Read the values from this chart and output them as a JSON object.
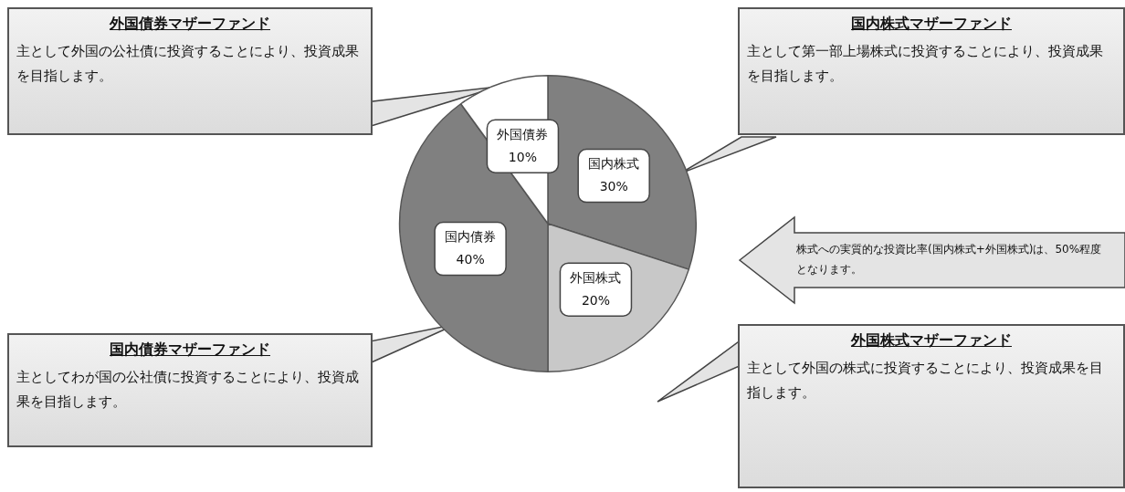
{
  "chart_data": {
    "type": "pie",
    "categories": [
      "国内株式",
      "外国株式",
      "国内債券",
      "外国債券"
    ],
    "values": [
      30,
      20,
      40,
      10
    ],
    "value_labels": [
      "30%",
      "20%",
      "40%",
      "10%"
    ],
    "colors": [
      "#808080",
      "#c8c8c8",
      "#808080",
      "#ffffff"
    ],
    "legend": false,
    "annotations": [
      "外国債券マザーファンド",
      "主として外国の公社債に投資することにより、投資成果を目指します。",
      "国内株式マザーファンド",
      "主として第一部上場株式に投資することにより、投資成果を目指します。",
      "株式への実質的な投資比率(国内株式+外国株式)は、50%程度となります。",
      "国内債券マザーファンド",
      "主としてわが国の公社債に投資することにより、投資成果を目指します。",
      "外国株式マザーファンド",
      "主として外国の株式に投資することにより、投資成果を目指します。"
    ]
  }
}
